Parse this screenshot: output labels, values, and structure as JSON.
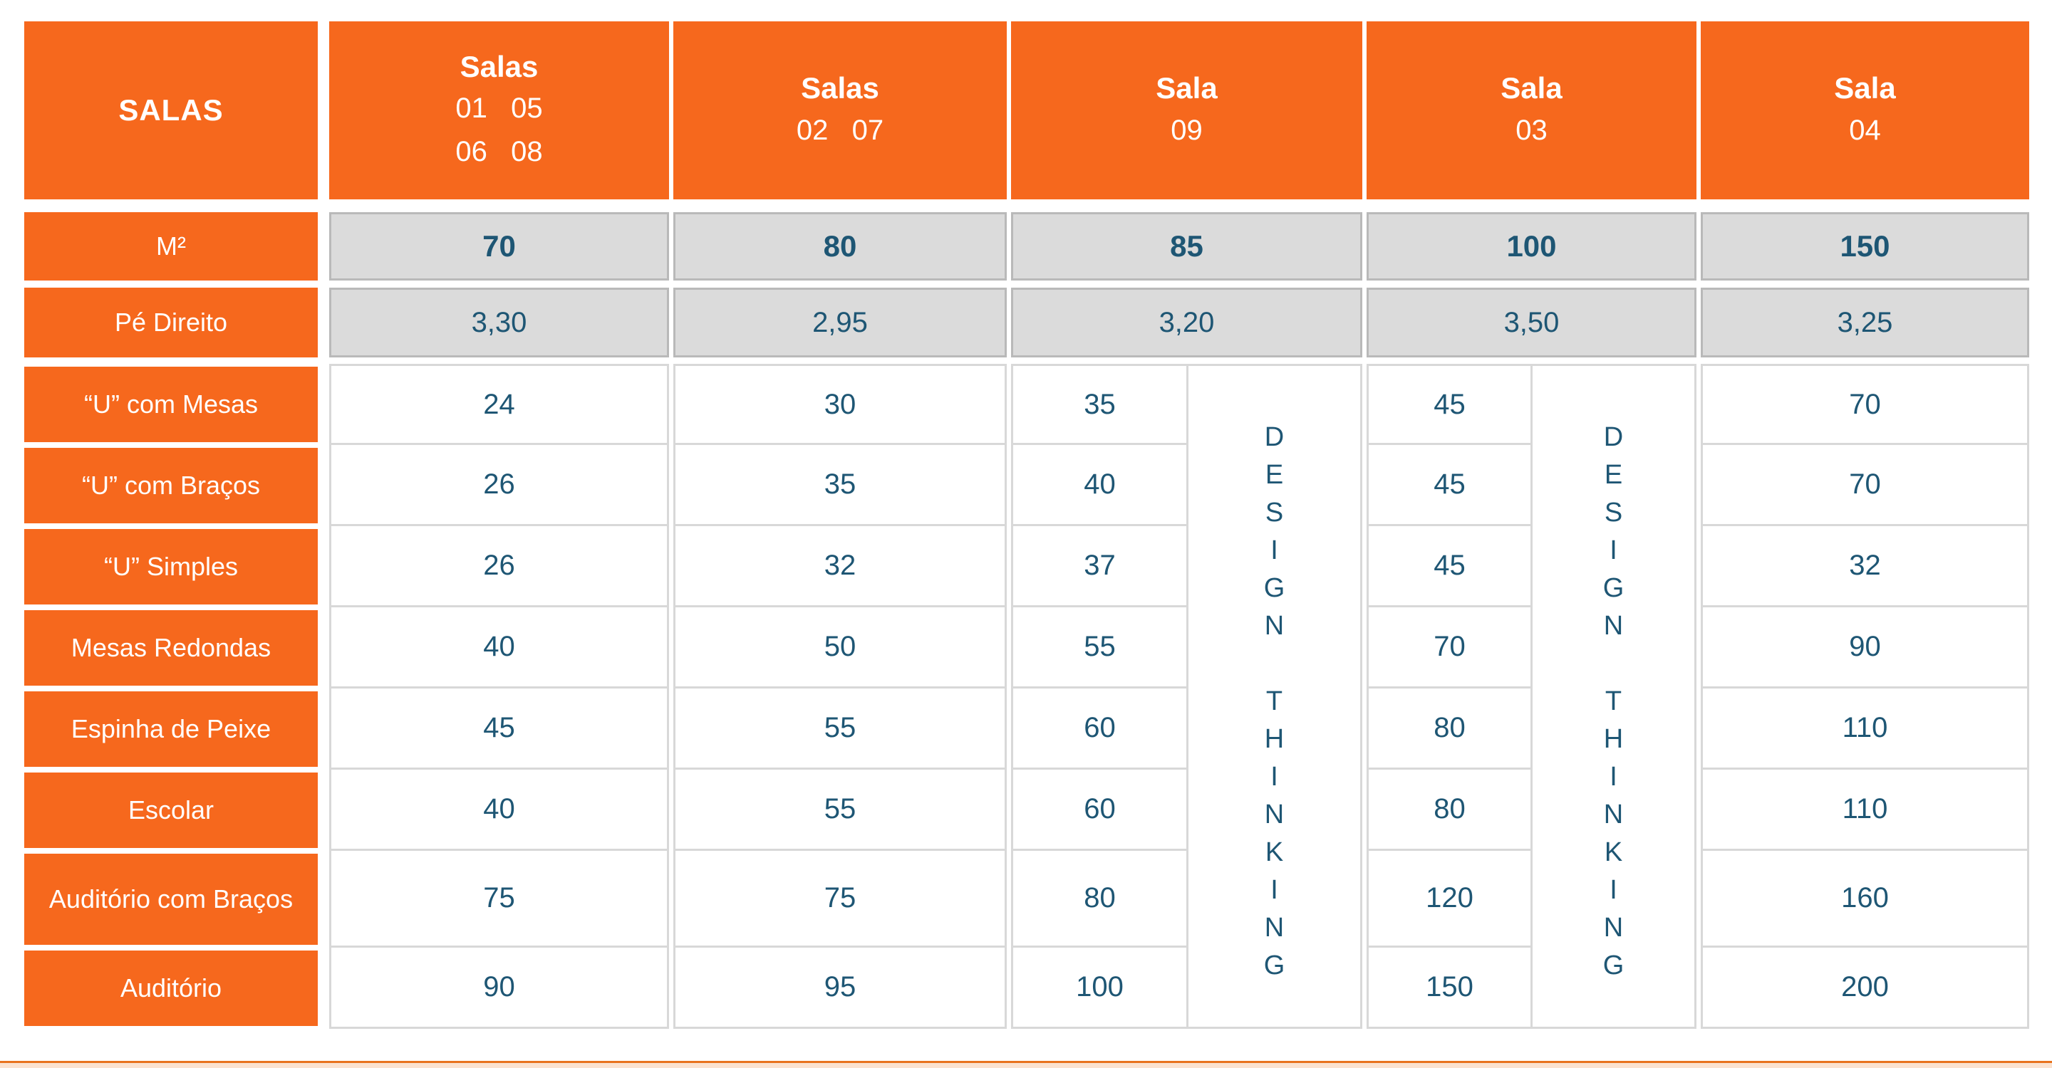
{
  "table_title_cell": "SALAS",
  "headers": [
    {
      "title": "Salas",
      "line1": "01   05",
      "line2": "06   08"
    },
    {
      "title": "Salas",
      "line1": "02   07"
    },
    {
      "title": "Sala",
      "line1": "09"
    },
    {
      "title": "Sala",
      "line1": "03"
    },
    {
      "title": "Sala",
      "line1": "04"
    }
  ],
  "m2": {
    "label": "M²",
    "values": [
      "70",
      "80",
      "85",
      "100",
      "150"
    ]
  },
  "pe_direito": {
    "label": "Pé Direito",
    "values": [
      "3,30",
      "2,95",
      "3,20",
      "3,50",
      "3,25"
    ]
  },
  "rows": [
    {
      "label": "“U” com Mesas",
      "values": [
        "24",
        "30",
        "35",
        "45",
        "70"
      ]
    },
    {
      "label": "“U” com Braços",
      "values": [
        "26",
        "35",
        "40",
        "45",
        "70"
      ]
    },
    {
      "label": "“U” Simples",
      "values": [
        "26",
        "32",
        "37",
        "45",
        "32"
      ]
    },
    {
      "label": "Mesas Redondas",
      "values": [
        "40",
        "50",
        "55",
        "70",
        "90"
      ]
    },
    {
      "label": "Espinha de Peixe",
      "values": [
        "45",
        "55",
        "60",
        "80",
        "110"
      ]
    },
    {
      "label": "Escolar",
      "values": [
        "40",
        "55",
        "60",
        "80",
        "110"
      ]
    },
    {
      "label": "Auditório com Braços",
      "values": [
        "75",
        "75",
        "80",
        "120",
        "160"
      ]
    },
    {
      "label": "Auditório",
      "values": [
        "90",
        "95",
        "100",
        "150",
        "200"
      ]
    }
  ],
  "design_thinking_vertical": "D\nE\nS\nI\nG\nN\n\nT\nH\nI\nN\nK\nI\nN\nG",
  "colors": {
    "orange": "#F6681D",
    "blue": "#1E5674",
    "gray_fill": "#DBDBDB"
  }
}
